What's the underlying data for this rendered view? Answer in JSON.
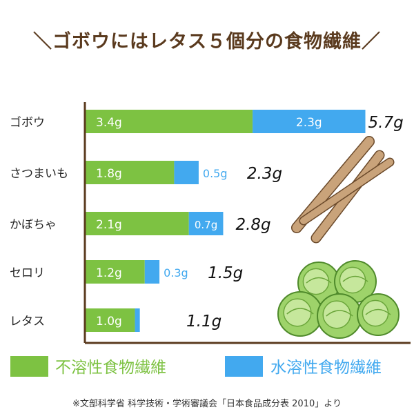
{
  "title": "＼ゴボウにはレタス５個分の食物繊維／",
  "footnote": "※文部科学省 科学技術・学術審議会「日本食品成分表 2010」より",
  "colors": {
    "insoluble": "#7dc242",
    "soluble": "#42a9ef",
    "axis": "#5a3a1e",
    "title": "#5a3a1e"
  },
  "chart_data": {
    "type": "bar",
    "orientation": "horizontal",
    "stacked": true,
    "categories": [
      "ゴボウ",
      "さつまいも",
      "かぼちゃ",
      "セロリ",
      "レタス"
    ],
    "unit": "g",
    "series": [
      {
        "name": "不溶性食物繊維",
        "values": [
          3.4,
          1.8,
          2.1,
          1.2,
          1.0
        ]
      },
      {
        "name": "水溶性食物繊維",
        "values": [
          2.3,
          0.5,
          0.7,
          0.3,
          0.1
        ]
      }
    ],
    "value_labels": {
      "insoluble": [
        "3.4g",
        "1.8g",
        "2.1g",
        "1.2g",
        "1.0g"
      ],
      "soluble": [
        "2.3g",
        "0.5g",
        "0.7g",
        "0.3g",
        ""
      ]
    },
    "totals": [
      5.7,
      2.3,
      2.8,
      1.5,
      1.1
    ],
    "total_labels": [
      "5.7g",
      "2.3g",
      "2.8g",
      "1.5g",
      "1.1g"
    ],
    "xlim": [
      0,
      5.7
    ],
    "legend": {
      "position": "bottom",
      "labels": [
        "不溶性食物繊維",
        "水溶性食物繊維"
      ]
    },
    "grid": false
  },
  "illustrations": [
    "burdock-root",
    "lettuce-heads"
  ]
}
